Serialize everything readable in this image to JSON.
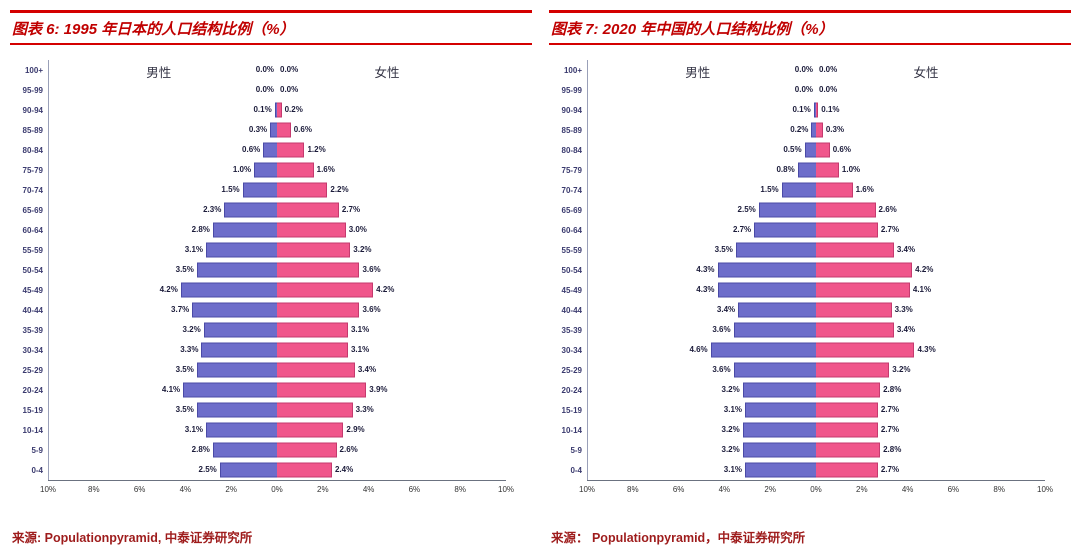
{
  "colors": {
    "male_bar": "#6d6dca",
    "male_bar_border": "#4a4aa6",
    "female_bar": "#f0568b",
    "female_bar_border": "#c43a6e",
    "title_text": "#c00000",
    "title_rules": "#d40000",
    "source_text": "#9e1c1c",
    "age_labels": "#3a3a6e",
    "value_labels": "#1b1b3a",
    "axis_labels": "#333333"
  },
  "chart_data": [
    {
      "type": "bar",
      "variant": "population-pyramid",
      "title": "图表 6: 1995 年日本的人口结构比例（%）",
      "male_label": "男性",
      "female_label": "女性",
      "source": "来源: Populationpyramid, 中泰证券研究所",
      "categories": [
        "100+",
        "95-99",
        "90-94",
        "85-89",
        "80-84",
        "75-79",
        "70-74",
        "65-69",
        "60-64",
        "55-59",
        "50-54",
        "45-49",
        "40-44",
        "35-39",
        "30-34",
        "25-29",
        "20-24",
        "15-19",
        "10-14",
        "5-9",
        "0-4"
      ],
      "series": [
        {
          "name": "男性",
          "side": "left",
          "values": [
            0.0,
            0.0,
            0.1,
            0.3,
            0.6,
            1.0,
            1.5,
            2.3,
            2.8,
            3.1,
            3.5,
            4.2,
            3.7,
            3.2,
            3.3,
            3.5,
            4.1,
            3.5,
            3.1,
            2.8,
            2.5
          ]
        },
        {
          "name": "女性",
          "side": "right",
          "values": [
            0.0,
            0.0,
            0.2,
            0.6,
            1.2,
            1.6,
            2.2,
            2.7,
            3.0,
            3.2,
            3.6,
            4.2,
            3.6,
            3.1,
            3.1,
            3.4,
            3.9,
            3.3,
            2.9,
            2.6,
            2.4
          ]
        }
      ],
      "x_ticks": [
        "10%",
        "8%",
        "6%",
        "4%",
        "2%",
        "0%",
        "2%",
        "4%",
        "6%",
        "8%",
        "10%"
      ],
      "xlim": [
        -10,
        10
      ],
      "unit": "%",
      "grid": false,
      "legend_position": "top-inside"
    },
    {
      "type": "bar",
      "variant": "population-pyramid",
      "title": "图表 7: 2020 年中国的人口结构比例（%）",
      "male_label": "男性",
      "female_label": "女性",
      "source": "来源：  Populationpyramid，中泰证券研究所",
      "categories": [
        "100+",
        "95-99",
        "90-94",
        "85-89",
        "80-84",
        "75-79",
        "70-74",
        "65-69",
        "60-64",
        "55-59",
        "50-54",
        "45-49",
        "40-44",
        "35-39",
        "30-34",
        "25-29",
        "20-24",
        "15-19",
        "10-14",
        "5-9",
        "0-4"
      ],
      "series": [
        {
          "name": "男性",
          "side": "left",
          "values": [
            0.0,
            0.0,
            0.1,
            0.2,
            0.5,
            0.8,
            1.5,
            2.5,
            2.7,
            3.5,
            4.3,
            4.3,
            3.4,
            3.6,
            4.6,
            3.6,
            3.2,
            3.1,
            3.2,
            3.2,
            3.1
          ]
        },
        {
          "name": "女性",
          "side": "right",
          "values": [
            0.0,
            0.0,
            0.1,
            0.3,
            0.6,
            1.0,
            1.6,
            2.6,
            2.7,
            3.4,
            4.2,
            4.1,
            3.3,
            3.4,
            4.3,
            3.2,
            2.8,
            2.7,
            2.7,
            2.8,
            2.7
          ]
        }
      ],
      "x_ticks": [
        "10%",
        "8%",
        "6%",
        "4%",
        "2%",
        "0%",
        "2%",
        "4%",
        "6%",
        "8%",
        "10%"
      ],
      "xlim": [
        -10,
        10
      ],
      "unit": "%",
      "grid": false,
      "legend_position": "top-inside"
    }
  ]
}
